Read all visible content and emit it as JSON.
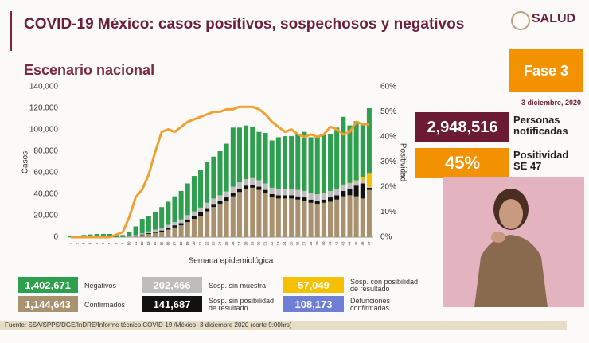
{
  "header": {
    "title": "COVID-19 México: casos positivos, sospechosos y negativos",
    "logo": "SALUD",
    "subtitle": "Escenario nacional"
  },
  "panel": {
    "phase": "Fase 3",
    "date": "3 diciembre, 2020",
    "notified": "2,948,516",
    "notified_label": "Personas notificadas",
    "positivity": "45%",
    "positivity_label": "Positividad SE 47"
  },
  "chart_data": {
    "type": "bar",
    "stacked": true,
    "categories": [
      "1",
      "2",
      "3",
      "4",
      "5",
      "6",
      "7",
      "8",
      "9",
      "10",
      "11",
      "12",
      "13",
      "14",
      "15",
      "16",
      "17",
      "18",
      "19",
      "20",
      "21",
      "22",
      "23",
      "24",
      "25",
      "26",
      "27",
      "28",
      "29",
      "30",
      "31",
      "32",
      "33",
      "34",
      "35",
      "36",
      "37",
      "38",
      "39",
      "40",
      "41",
      "42",
      "43",
      "44",
      "45",
      "46",
      "47"
    ],
    "series": [
      {
        "name": "Confirmados",
        "color": "#a8916f",
        "values": [
          0,
          0,
          0,
          0,
          0,
          0,
          0,
          0,
          100,
          500,
          1000,
          2000,
          3000,
          4000,
          5000,
          7000,
          9000,
          11000,
          14000,
          17000,
          20000,
          24000,
          28000,
          31000,
          34000,
          38000,
          42000,
          45000,
          46000,
          44000,
          41000,
          37000,
          36000,
          36000,
          36000,
          35000,
          34000,
          32000,
          31000,
          32000,
          33000,
          35000,
          38000,
          39000,
          38000,
          36000,
          44000
        ]
      },
      {
        "name": "Sosp. sin posibilidad de resultado",
        "color": "#111111",
        "values": [
          0,
          0,
          0,
          0,
          0,
          0,
          0,
          0,
          0,
          100,
          300,
          500,
          800,
          1000,
          1200,
          1500,
          2000,
          2000,
          2500,
          3000,
          3000,
          3000,
          3000,
          3000,
          3000,
          3000,
          3000,
          3000,
          3000,
          3000,
          3000,
          3000,
          3000,
          3000,
          3000,
          3000,
          3000,
          3000,
          3000,
          3000,
          4000,
          4000,
          5000,
          6000,
          10000,
          14000,
          2000
        ]
      },
      {
        "name": "Sosp. sin muestra",
        "color": "#bdbdbd",
        "values": [
          0,
          0,
          0,
          0,
          0,
          0,
          0,
          0,
          100,
          200,
          500,
          1000,
          1500,
          2000,
          2500,
          3000,
          3000,
          3500,
          4000,
          4000,
          4500,
          5000,
          5000,
          5000,
          5500,
          6000,
          6000,
          6000,
          6000,
          6000,
          6000,
          6000,
          6000,
          6000,
          6000,
          6000,
          6000,
          6000,
          6000,
          6000,
          6000,
          6000,
          6000,
          5000,
          4000,
          3000,
          1000
        ]
      },
      {
        "name": "Sosp. con posibilidad de resultado",
        "color": "#f5c000",
        "values": [
          0,
          0,
          0,
          0,
          0,
          0,
          0,
          0,
          0,
          0,
          0,
          0,
          0,
          0,
          0,
          0,
          0,
          0,
          0,
          0,
          0,
          0,
          0,
          0,
          0,
          0,
          0,
          0,
          0,
          0,
          0,
          0,
          0,
          0,
          0,
          0,
          0,
          0,
          0,
          0,
          0,
          0,
          0,
          500,
          1000,
          3000,
          12000
        ]
      },
      {
        "name": "Negativos",
        "color": "#2e9e4f",
        "values": [
          1000,
          1500,
          2000,
          2500,
          3000,
          3000,
          3000,
          2500,
          1800,
          4200,
          8200,
          13500,
          14700,
          16000,
          19300,
          21500,
          24000,
          26500,
          29500,
          33000,
          35500,
          38000,
          39000,
          41000,
          44500,
          55000,
          51000,
          50000,
          48000,
          45000,
          47000,
          44000,
          48000,
          49000,
          49000,
          52000,
          55000,
          52000,
          53000,
          54000,
          53000,
          57000,
          63000,
          53500,
          55000,
          50000,
          61000
        ]
      },
      {
        "type": "line",
        "axis": "y2",
        "color": "#f0a030",
        "values": [
          0,
          0,
          0,
          0,
          0,
          0,
          0,
          1,
          2,
          8,
          16,
          19,
          25,
          34,
          42,
          43,
          42,
          44,
          46,
          47,
          48,
          49,
          50,
          50,
          51,
          51,
          52,
          52,
          52,
          51,
          49,
          46,
          44,
          42,
          43,
          41,
          40,
          41,
          40,
          41,
          44,
          43,
          41,
          42,
          46,
          45,
          45
        ]
      }
    ],
    "legend_totals": [
      "1,144,643",
      "141,687",
      "202,466",
      "57,049",
      "1,402,671"
    ],
    "deaths": {
      "label": "Defunciones confirmadas",
      "total": "108,173",
      "color": "#6f7fd6"
    },
    "ylabel": "Casos",
    "y2label": "Positividad",
    "xlabel": "Semana epidemiológica",
    "ylim": [
      0,
      140000
    ],
    "yticks": [
      0,
      {
        "value": 20000,
        "label": "20,000"
      },
      {
        "value": 40000,
        "label": "40,000"
      },
      {
        "value": 60000,
        "label": "60,000"
      },
      {
        "value": 80000,
        "label": "80,000"
      },
      {
        "value": 100000,
        "label": "100,000"
      },
      {
        "value": 120000,
        "label": "120,000"
      },
      {
        "value": 140000,
        "label": "140,000"
      }
    ],
    "y2lim": [
      0,
      60
    ],
    "y2ticks": [
      {
        "value": 0,
        "label": "0%"
      },
      {
        "value": 10,
        "label": "10%"
      },
      {
        "value": 20,
        "label": "20%"
      },
      {
        "value": 30,
        "label": "30%"
      },
      {
        "value": 40,
        "label": "40%"
      },
      {
        "value": 50,
        "label": "50%"
      },
      {
        "value": 60,
        "label": "60%"
      }
    ],
    "grid": false
  },
  "footer": "Fuente: SSA/SPPS/DGE/InDRE/Informe técnico.COVID-19 /México- 3 diciembre 2020 (corte 9:00hrs)"
}
